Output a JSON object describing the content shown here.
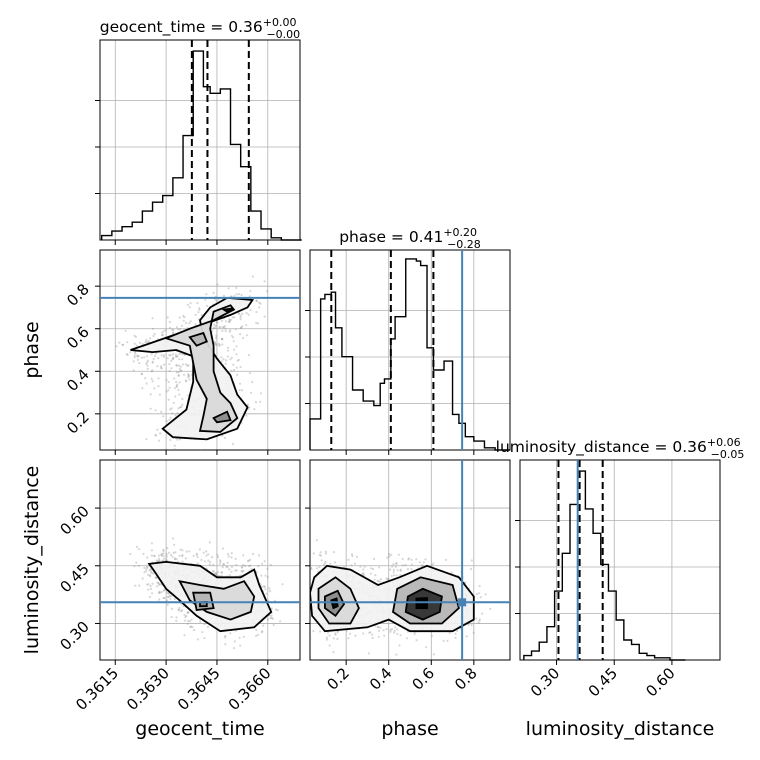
{
  "chart_data": {
    "type": "corner",
    "truth_color": "#4682b4",
    "truths": {
      "geocent_time": null,
      "phase": 0.745,
      "luminosity_distance": 0.355
    },
    "parameters": [
      {
        "name": "geocent_time",
        "xlabel": "geocent_time",
        "title_main": "geocent_time = 0.36",
        "title_sup": "+0.00",
        "title_sub": "−0.00",
        "range": [
          0.36105,
          0.36695
        ],
        "ticks": [
          0.3615,
          0.363,
          0.3645,
          0.366
        ],
        "ticklabels": [
          "0.3615",
          "0.3630",
          "0.3645",
          "0.3660"
        ],
        "quantiles": [
          0.36376,
          0.36422,
          0.36544
        ],
        "bin_edges": [
          0.3611,
          0.3614,
          0.3617,
          0.362,
          0.3623,
          0.3626,
          0.3629,
          0.3632,
          0.3635,
          0.3638,
          0.3641,
          0.3643,
          0.3646,
          0.3649,
          0.3652,
          0.3655,
          0.3658,
          0.3661,
          0.3664,
          0.3667,
          0.367
        ],
        "counts": [
          0.02,
          0.04,
          0.06,
          0.08,
          0.13,
          0.17,
          0.2,
          0.28,
          0.47,
          0.85,
          0.69,
          0.66,
          0.68,
          0.43,
          0.33,
          0.13,
          0.05,
          0.01,
          0.0,
          0.0
        ]
      },
      {
        "name": "phase",
        "xlabel": "phase",
        "ylabel": "phase",
        "title_main": "phase = 0.41",
        "title_sup": "+0.20",
        "title_sub": "−0.28",
        "range": [
          0.03,
          0.97
        ],
        "ticks": [
          0.2,
          0.4,
          0.6,
          0.8
        ],
        "ticklabels": [
          "0.2",
          "0.4",
          "0.6",
          "0.8"
        ],
        "quantiles": [
          0.13,
          0.41,
          0.61
        ],
        "bin_edges": [
          0.03,
          0.08,
          0.1,
          0.13,
          0.15,
          0.18,
          0.23,
          0.28,
          0.33,
          0.36,
          0.38,
          0.41,
          0.43,
          0.48,
          0.53,
          0.55,
          0.58,
          0.61,
          0.66,
          0.7,
          0.73,
          0.76,
          0.8,
          0.85,
          0.9,
          0.97
        ],
        "counts": [
          0.14,
          0.68,
          0.7,
          0.71,
          0.55,
          0.42,
          0.27,
          0.22,
          0.2,
          0.3,
          0.32,
          0.5,
          0.6,
          0.86,
          0.85,
          0.83,
          0.46,
          0.36,
          0.4,
          0.16,
          0.12,
          0.06,
          0.04,
          0.01,
          0.0
        ]
      },
      {
        "name": "luminosity_distance",
        "xlabel": "luminosity_distance",
        "ylabel": "luminosity_distance",
        "title_main": "luminosity_distance = 0.36",
        "title_sup": "+0.06",
        "title_sub": "−0.05",
        "range": [
          0.205,
          0.725
        ],
        "ticks": [
          0.3,
          0.45,
          0.6
        ],
        "ticklabels": [
          "0.30",
          "0.45",
          "0.60"
        ],
        "quantiles": [
          0.305,
          0.36,
          0.42
        ],
        "bin_edges": [
          0.215,
          0.235,
          0.255,
          0.275,
          0.295,
          0.315,
          0.335,
          0.355,
          0.375,
          0.395,
          0.415,
          0.435,
          0.455,
          0.475,
          0.495,
          0.515,
          0.535,
          0.555,
          0.575,
          0.595,
          0.615,
          0.635
        ],
        "counts": [
          0.02,
          0.04,
          0.08,
          0.15,
          0.31,
          0.48,
          0.7,
          0.85,
          0.68,
          0.57,
          0.43,
          0.31,
          0.18,
          0.09,
          0.07,
          0.03,
          0.02,
          0.01,
          0.01,
          0.0,
          0.0
        ]
      }
    ],
    "contour_sets": [
      {
        "x": "geocent_time",
        "y": "phase",
        "levels": [
          [
            [
              0.36195,
              0.5
            ],
            [
              0.3625,
              0.53
            ],
            [
              0.3634,
              0.58
            ],
            [
              0.3641,
              0.62
            ],
            [
              0.3649,
              0.665
            ],
            [
              0.3654,
              0.7
            ],
            [
              0.36555,
              0.735
            ],
            [
              0.3648,
              0.745
            ],
            [
              0.3643,
              0.7
            ],
            [
              0.364,
              0.64
            ],
            [
              0.3641,
              0.56
            ],
            [
              0.3645,
              0.46
            ],
            [
              0.3649,
              0.38
            ],
            [
              0.3651,
              0.29
            ],
            [
              0.3654,
              0.23
            ],
            [
              0.3651,
              0.13
            ],
            [
              0.3642,
              0.08
            ],
            [
              0.3632,
              0.09
            ],
            [
              0.3629,
              0.13
            ],
            [
              0.3636,
              0.22
            ],
            [
              0.3638,
              0.35
            ],
            [
              0.3638,
              0.47
            ],
            [
              0.3633,
              0.5
            ],
            [
              0.3626,
              0.49
            ],
            [
              0.36195,
              0.5
            ]
          ],
          [
            [
              0.363,
              0.555
            ],
            [
              0.3637,
              0.6
            ],
            [
              0.3644,
              0.64
            ],
            [
              0.365,
              0.69
            ],
            [
              0.3649,
              0.71
            ],
            [
              0.3644,
              0.68
            ],
            [
              0.3643,
              0.6
            ],
            [
              0.3644,
              0.52
            ],
            [
              0.3644,
              0.4
            ],
            [
              0.3646,
              0.3
            ],
            [
              0.3649,
              0.25
            ],
            [
              0.3651,
              0.18
            ],
            [
              0.3646,
              0.115
            ],
            [
              0.364,
              0.12
            ],
            [
              0.3641,
              0.19
            ],
            [
              0.3642,
              0.27
            ],
            [
              0.3639,
              0.36
            ],
            [
              0.3637,
              0.52
            ],
            [
              0.363,
              0.555
            ]
          ],
          [
            [
              0.3637,
              0.56
            ],
            [
              0.3641,
              0.58
            ],
            [
              0.3642,
              0.54
            ],
            [
              0.3639,
              0.52
            ],
            [
              0.3637,
              0.56
            ]
          ],
          [
            [
              0.3644,
              0.18
            ],
            [
              0.3648,
              0.21
            ],
            [
              0.3649,
              0.17
            ],
            [
              0.3645,
              0.16
            ],
            [
              0.3644,
              0.18
            ]
          ],
          [
            [
              0.3647,
              0.69
            ],
            [
              0.36495,
              0.695
            ],
            [
              0.3648,
              0.68
            ],
            [
              0.3647,
              0.69
            ]
          ]
        ]
      },
      {
        "x": "geocent_time",
        "y": "luminosity_distance",
        "levels": [
          [
            [
              0.363,
              0.46
            ],
            [
              0.364,
              0.45
            ],
            [
              0.3645,
              0.42
            ],
            [
              0.3652,
              0.42
            ],
            [
              0.3656,
              0.44
            ],
            [
              0.36575,
              0.4
            ],
            [
              0.3661,
              0.33
            ],
            [
              0.3656,
              0.29
            ],
            [
              0.3646,
              0.28
            ],
            [
              0.3639,
              0.32
            ],
            [
              0.3634,
              0.36
            ],
            [
              0.363,
              0.39
            ],
            [
              0.3627,
              0.43
            ],
            [
              0.3625,
              0.455
            ],
            [
              0.363,
              0.46
            ]
          ],
          [
            [
              0.3634,
              0.41
            ],
            [
              0.364,
              0.4
            ],
            [
              0.3647,
              0.39
            ],
            [
              0.3653,
              0.41
            ],
            [
              0.3656,
              0.37
            ],
            [
              0.3655,
              0.33
            ],
            [
              0.3649,
              0.31
            ],
            [
              0.3642,
              0.33
            ],
            [
              0.3637,
              0.36
            ],
            [
              0.3634,
              0.41
            ]
          ],
          [
            [
              0.3638,
              0.38
            ],
            [
              0.3643,
              0.38
            ],
            [
              0.3644,
              0.34
            ],
            [
              0.3639,
              0.335
            ],
            [
              0.3638,
              0.38
            ]
          ],
          [
            [
              0.364,
              0.355
            ],
            [
              0.3642,
              0.356
            ],
            [
              0.3642,
              0.345
            ],
            [
              0.364,
              0.345
            ],
            [
              0.364,
              0.355
            ]
          ]
        ]
      },
      {
        "x": "phase",
        "y": "luminosity_distance",
        "levels": [
          [
            [
              0.05,
              0.42
            ],
            [
              0.11,
              0.45
            ],
            [
              0.22,
              0.44
            ],
            [
              0.35,
              0.4
            ],
            [
              0.45,
              0.42
            ],
            [
              0.58,
              0.45
            ],
            [
              0.73,
              0.42
            ],
            [
              0.8,
              0.37
            ],
            [
              0.8,
              0.31
            ],
            [
              0.7,
              0.28
            ],
            [
              0.5,
              0.28
            ],
            [
              0.4,
              0.31
            ],
            [
              0.3,
              0.29
            ],
            [
              0.1,
              0.28
            ],
            [
              0.04,
              0.32
            ],
            [
              0.03,
              0.38
            ],
            [
              0.05,
              0.42
            ]
          ],
          [
            [
              0.07,
              0.39
            ],
            [
              0.15,
              0.42
            ],
            [
              0.22,
              0.39
            ],
            [
              0.26,
              0.34
            ],
            [
              0.22,
              0.3
            ],
            [
              0.12,
              0.3
            ],
            [
              0.07,
              0.34
            ],
            [
              0.07,
              0.39
            ]
          ],
          [
            [
              0.44,
              0.39
            ],
            [
              0.55,
              0.42
            ],
            [
              0.7,
              0.4
            ],
            [
              0.73,
              0.34
            ],
            [
              0.65,
              0.3
            ],
            [
              0.5,
              0.3
            ],
            [
              0.42,
              0.33
            ],
            [
              0.44,
              0.39
            ]
          ],
          [
            [
              0.1,
              0.37
            ],
            [
              0.16,
              0.385
            ],
            [
              0.19,
              0.35
            ],
            [
              0.15,
              0.32
            ],
            [
              0.1,
              0.34
            ],
            [
              0.1,
              0.37
            ]
          ],
          [
            [
              0.49,
              0.37
            ],
            [
              0.56,
              0.39
            ],
            [
              0.65,
              0.37
            ],
            [
              0.64,
              0.33
            ],
            [
              0.56,
              0.31
            ],
            [
              0.48,
              0.33
            ],
            [
              0.49,
              0.37
            ]
          ],
          [
            [
              0.13,
              0.36
            ],
            [
              0.155,
              0.365
            ],
            [
              0.16,
              0.345
            ],
            [
              0.14,
              0.34
            ],
            [
              0.13,
              0.36
            ]
          ],
          [
            [
              0.53,
              0.365
            ],
            [
              0.58,
              0.366
            ],
            [
              0.58,
              0.34
            ],
            [
              0.53,
              0.34
            ],
            [
              0.53,
              0.365
            ]
          ]
        ]
      }
    ]
  }
}
